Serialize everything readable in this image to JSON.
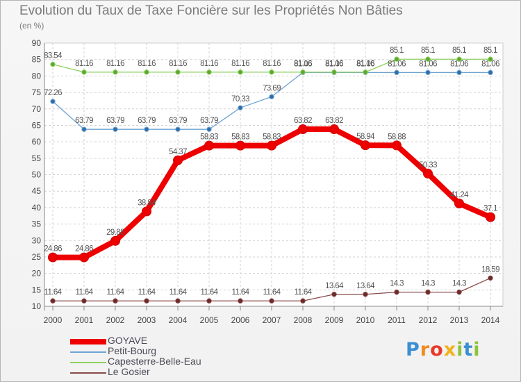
{
  "chart_data": {
    "type": "line",
    "title": "Evolution du Taux de Taxe Foncière sur les Propriétés Non Bâties",
    "ylabel": "(en %)",
    "xlabel": "",
    "ylim": [
      10,
      90
    ],
    "yticks": [
      "10",
      "15",
      "20",
      "25",
      "30",
      "35",
      "40",
      "45",
      "50",
      "55",
      "60",
      "65",
      "70",
      "75",
      "80",
      "85",
      "90"
    ],
    "x": [
      "2000",
      "2001",
      "2002",
      "2003",
      "2004",
      "2005",
      "2006",
      "2007",
      "2008",
      "2009",
      "2010",
      "2011",
      "2012",
      "2013",
      "2014"
    ],
    "grid": true,
    "legend_position": "bottom-left",
    "series": [
      {
        "name": "GOYAVE",
        "color": "#ee0000",
        "values": [
          24.86,
          24.86,
          29.88,
          38.84,
          54.37,
          58.83,
          58.83,
          58.83,
          63.82,
          63.82,
          58.94,
          58.88,
          50.33,
          41.24,
          37.1
        ],
        "labels": [
          "24.86",
          "24.86",
          "29.88",
          "38.84",
          "54.37",
          "58.83",
          "58.83",
          "58.83",
          "63.82",
          "63.82",
          "58.94",
          "58.88",
          "50.33",
          "41.24",
          "37.1"
        ]
      },
      {
        "name": "Petit-Bourg",
        "color": "#6fa4d4",
        "values": [
          72.26,
          63.79,
          63.79,
          63.79,
          63.79,
          63.79,
          70.33,
          73.69,
          81.06,
          81.06,
          81.06,
          81.06,
          81.06,
          81.06,
          81.06
        ],
        "labels": [
          "72.26",
          "63.79",
          "63.79",
          "63.79",
          "63.79",
          "63.79",
          "70.33",
          "73.69",
          "81.06",
          "81.06",
          "81.06",
          "81.06",
          "81.06",
          "81.06",
          "81.06"
        ]
      },
      {
        "name": "Capesterre-Belle-Eau",
        "color": "#8fd060",
        "values": [
          83.54,
          81.16,
          81.16,
          81.16,
          81.16,
          81.16,
          81.16,
          81.16,
          81.16,
          81.16,
          81.16,
          85.1,
          85.1,
          85.1,
          85.1
        ],
        "labels": [
          "83.54",
          "81.16",
          "81.16",
          "81.16",
          "81.16",
          "81.16",
          "81.16",
          "81.16",
          "81.16",
          "81.16",
          "81.16",
          "85.1",
          "85.1",
          "85.1",
          "85.1"
        ]
      },
      {
        "name": "Le Gosier",
        "color": "#8a4a4a",
        "values": [
          11.64,
          11.64,
          11.64,
          11.64,
          11.64,
          11.64,
          11.64,
          11.64,
          11.64,
          13.64,
          13.64,
          14.3,
          14.3,
          14.3,
          18.59
        ],
        "labels": [
          "11.64",
          "11.64",
          "11.64",
          "11.64",
          "11.64",
          "11.64",
          "11.64",
          "11.64",
          "11.64",
          "13.64",
          "13.64",
          "14.3",
          "14.3",
          "14.3",
          "18.59"
        ]
      }
    ]
  },
  "logo": {
    "text": "Proxiti",
    "letters": [
      "P",
      "r",
      "o",
      "x",
      "i",
      "t",
      "i"
    ],
    "colors": [
      "#3a8fd4",
      "#f08a1c",
      "#e83a2a",
      "#f2b21c",
      "#8cc43a",
      "#3a8fd4",
      "#8cc43a"
    ]
  }
}
